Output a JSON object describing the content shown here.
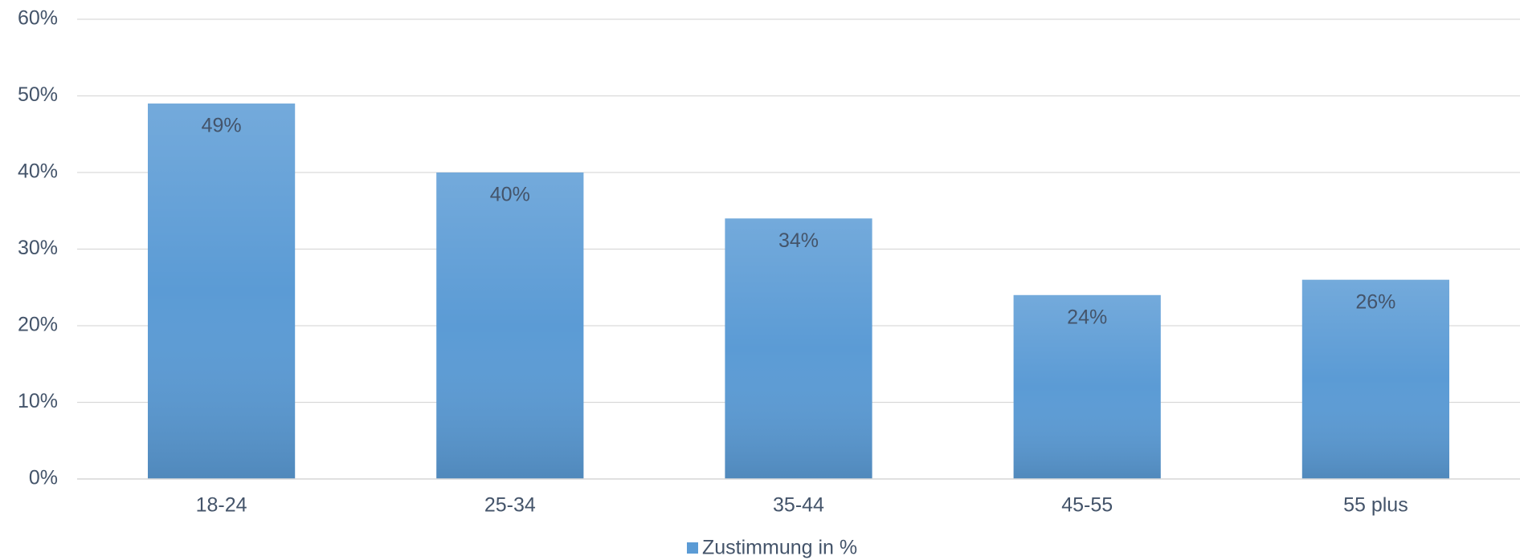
{
  "chart_data": {
    "type": "bar",
    "categories": [
      "18-24",
      "25-34",
      "35-44",
      "45-55",
      "55 plus"
    ],
    "series": [
      {
        "name": "Zustimmung in %",
        "color": "#5b9bd5",
        "values": [
          49,
          40,
          34,
          24,
          26
        ],
        "value_labels": [
          "49%",
          "40%",
          "34%",
          "24%",
          "26%"
        ]
      }
    ],
    "ylim": [
      0,
      60
    ],
    "yticks": [
      {
        "value": 0,
        "label": "0%"
      },
      {
        "value": 10,
        "label": "10%"
      },
      {
        "value": 20,
        "label": "20%"
      },
      {
        "value": 30,
        "label": "30%"
      },
      {
        "value": 40,
        "label": "40%"
      },
      {
        "value": 50,
        "label": "50%"
      },
      {
        "value": 60,
        "label": "60%"
      }
    ],
    "grid": true,
    "legend": "bottom"
  }
}
